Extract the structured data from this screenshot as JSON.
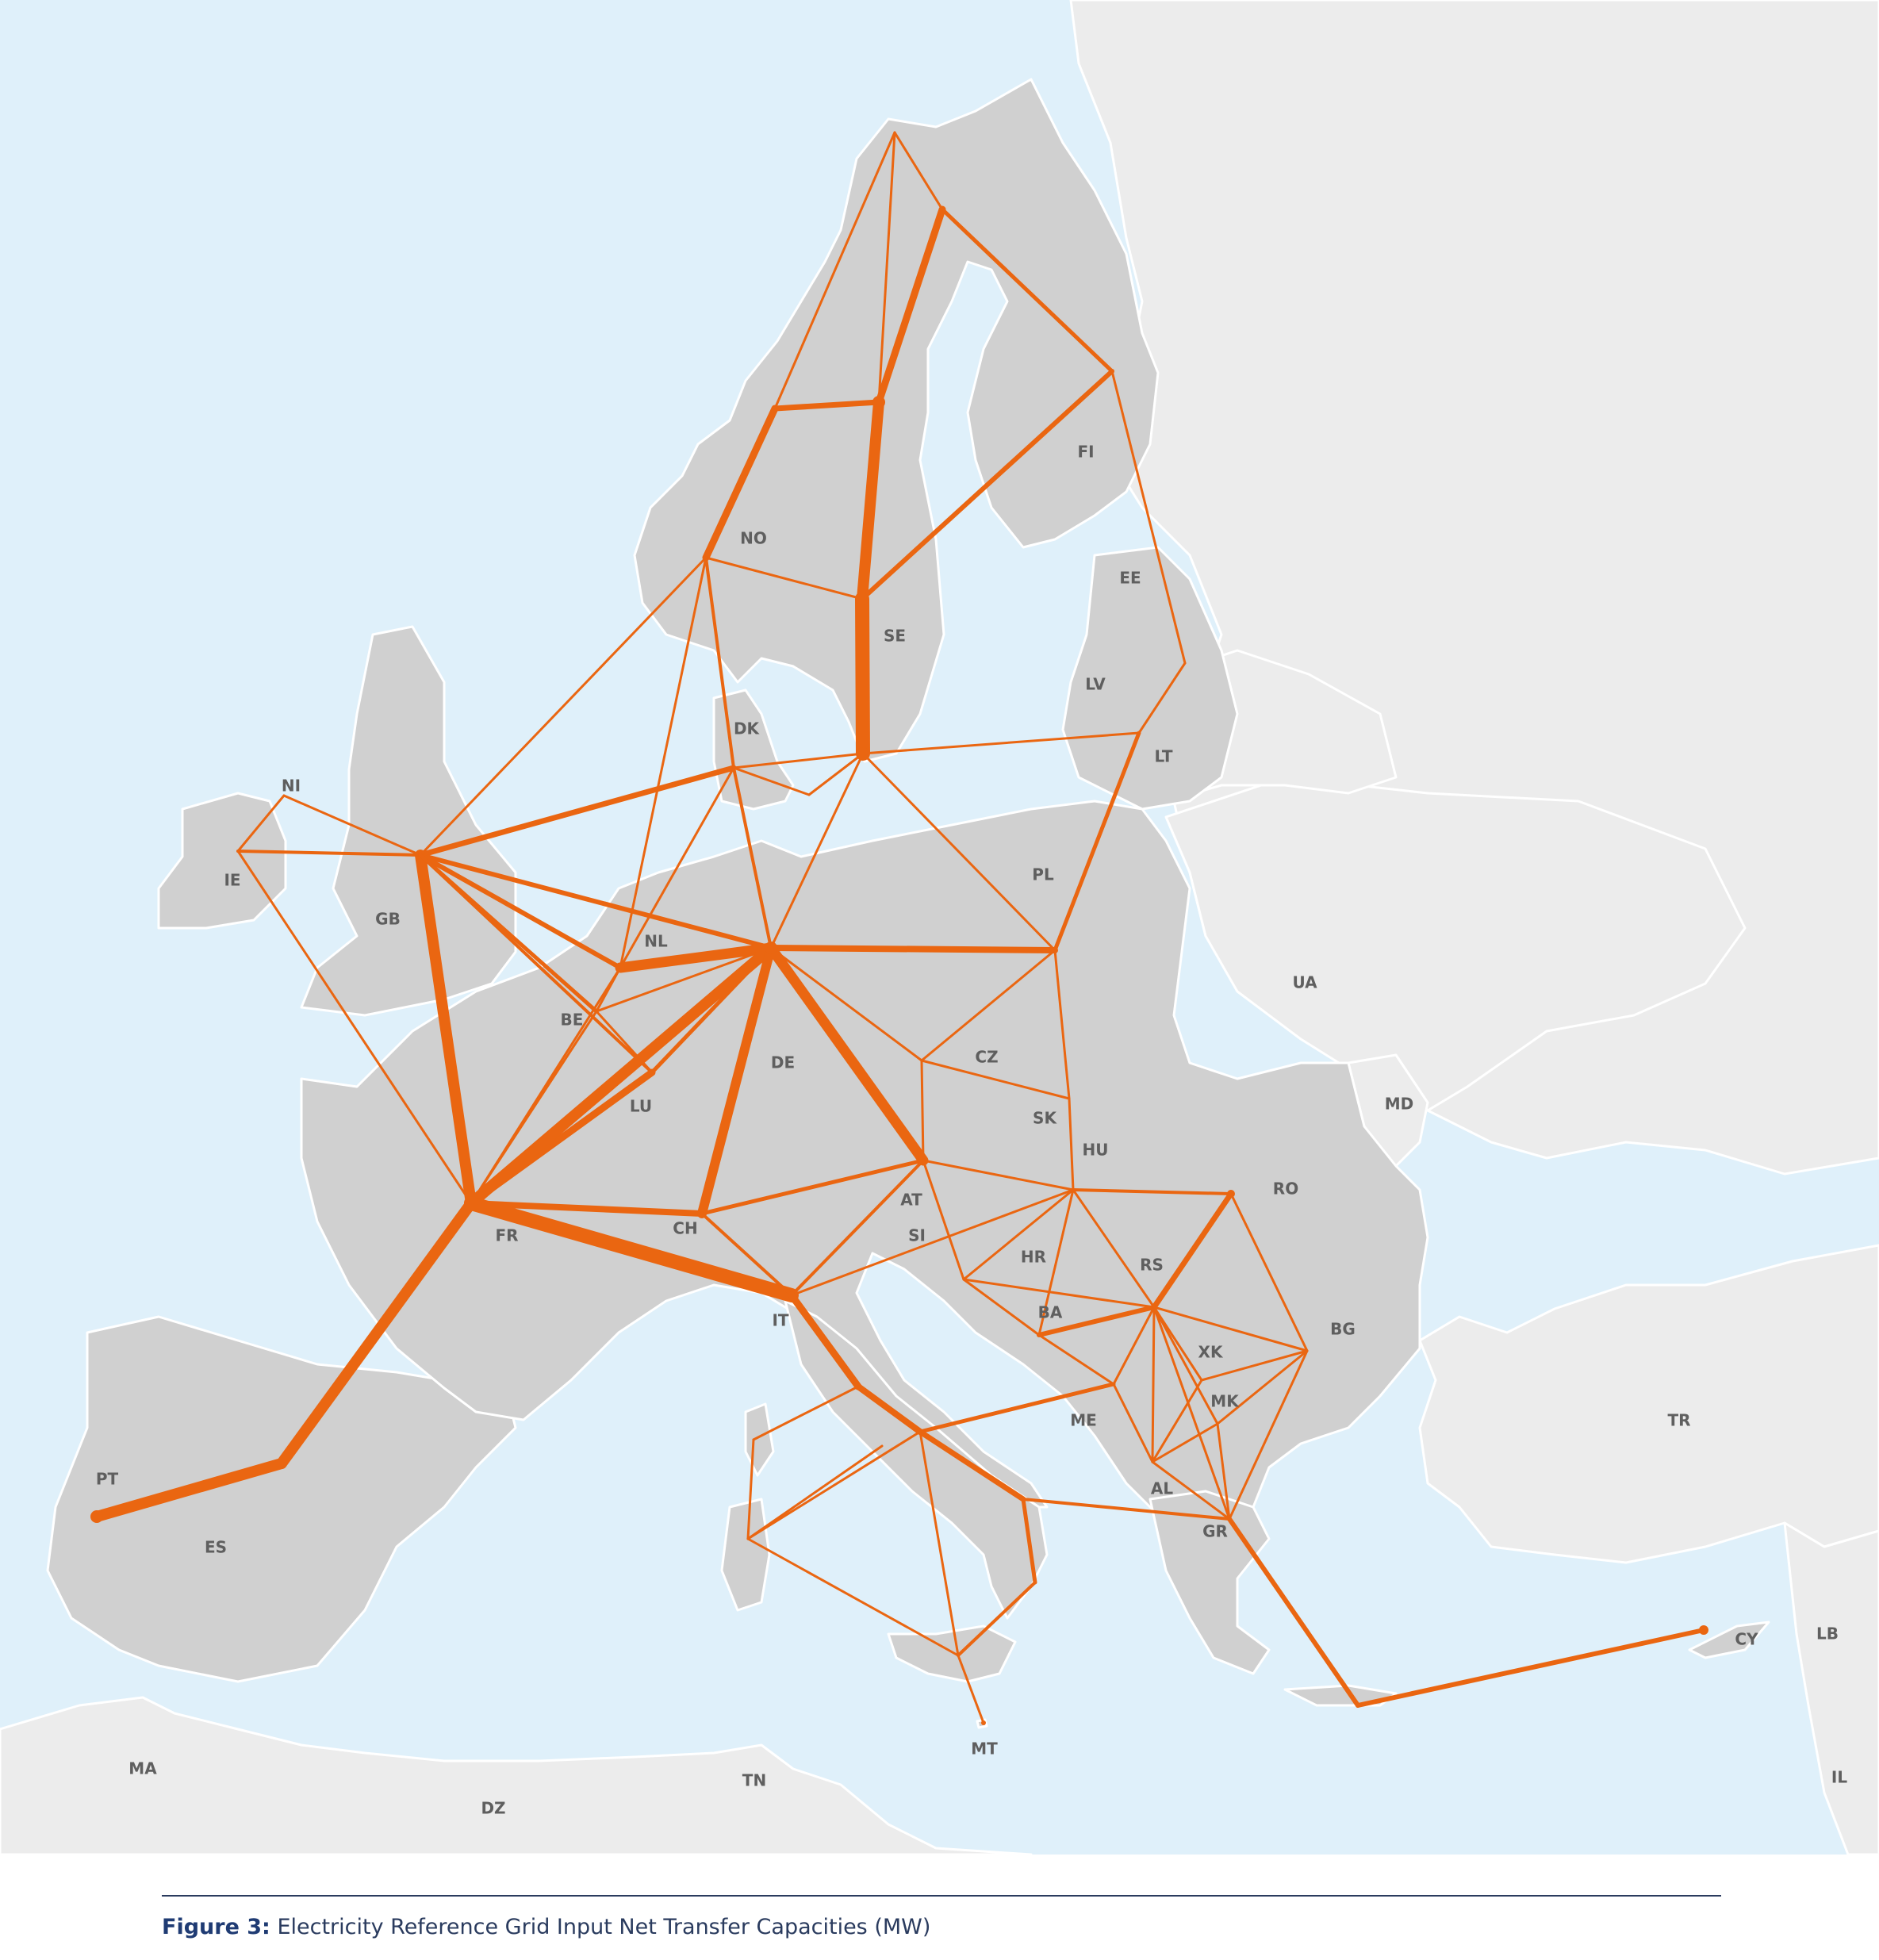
{
  "map": {
    "colors": {
      "sea": "#dff0fa",
      "eu_land": "#d0d0d0",
      "other_land": "#ececec",
      "border": "#ffffff",
      "link": "#ea6611",
      "label": "#5f5f5f"
    },
    "countries": [
      {
        "code": "NO",
        "label": "NO"
      },
      {
        "code": "SE",
        "label": "SE"
      },
      {
        "code": "FI",
        "label": "FI"
      },
      {
        "code": "EE",
        "label": "EE"
      },
      {
        "code": "LV",
        "label": "LV"
      },
      {
        "code": "LT",
        "label": "LT"
      },
      {
        "code": "DK",
        "label": "DK"
      },
      {
        "code": "NI",
        "label": "NI"
      },
      {
        "code": "IE",
        "label": "IE"
      },
      {
        "code": "GB",
        "label": "GB"
      },
      {
        "code": "NL",
        "label": "NL"
      },
      {
        "code": "BE",
        "label": "BE"
      },
      {
        "code": "LU",
        "label": "LU"
      },
      {
        "code": "DE",
        "label": "DE"
      },
      {
        "code": "PL",
        "label": "PL"
      },
      {
        "code": "CZ",
        "label": "CZ"
      },
      {
        "code": "SK",
        "label": "SK"
      },
      {
        "code": "HU",
        "label": "HU"
      },
      {
        "code": "AT",
        "label": "AT"
      },
      {
        "code": "SI",
        "label": "SI"
      },
      {
        "code": "CH",
        "label": "CH"
      },
      {
        "code": "FR",
        "label": "FR"
      },
      {
        "code": "IT",
        "label": "IT"
      },
      {
        "code": "HR",
        "label": "HR"
      },
      {
        "code": "BA",
        "label": "BA"
      },
      {
        "code": "RS",
        "label": "RS"
      },
      {
        "code": "RO",
        "label": "RO"
      },
      {
        "code": "BG",
        "label": "BG"
      },
      {
        "code": "XK",
        "label": "XK"
      },
      {
        "code": "MK",
        "label": "MK"
      },
      {
        "code": "ME",
        "label": "ME"
      },
      {
        "code": "AL",
        "label": "AL"
      },
      {
        "code": "GR",
        "label": "GR"
      },
      {
        "code": "PT",
        "label": "PT"
      },
      {
        "code": "ES",
        "label": "ES"
      },
      {
        "code": "MT",
        "label": "MT"
      },
      {
        "code": "CY",
        "label": "CY"
      },
      {
        "code": "UA",
        "label": "UA"
      },
      {
        "code": "MD",
        "label": "MD"
      },
      {
        "code": "TR",
        "label": "TR"
      },
      {
        "code": "MA",
        "label": "MA"
      },
      {
        "code": "DZ",
        "label": "DZ"
      },
      {
        "code": "TN",
        "label": "TN"
      },
      {
        "code": "LB",
        "label": "LB"
      },
      {
        "code": "IL",
        "label": "IL"
      }
    ],
    "interconnections": [
      {
        "from": "SE",
        "to": "SE-N",
        "weight": 5
      },
      {
        "from": "SE-N",
        "to": "SE-NN",
        "weight": 4
      },
      {
        "from": "SE-NN",
        "to": "NO-N",
        "weight": 2
      },
      {
        "from": "NO",
        "to": "NO-M",
        "weight": 3
      },
      {
        "from": "NO-M",
        "to": "SE-NN",
        "weight": 3
      },
      {
        "from": "SE-NN",
        "to": "SE-FI",
        "weight": 2
      },
      {
        "from": "SE-N",
        "to": "FI",
        "weight": 2
      },
      {
        "from": "FI",
        "to": "SE-FI",
        "weight": 2
      },
      {
        "from": "GB",
        "to": "FR",
        "weight": 4
      },
      {
        "from": "FR",
        "to": "DE",
        "weight": 4
      },
      {
        "from": "FR",
        "to": "IT",
        "weight": 4
      },
      {
        "from": "FR",
        "to": "ES",
        "weight": 3
      },
      {
        "from": "ES",
        "to": "PT",
        "weight": 3
      },
      {
        "from": "DE",
        "to": "NL",
        "weight": 3
      },
      {
        "from": "DE",
        "to": "AT",
        "weight": 3
      },
      {
        "from": "DE",
        "to": "PL",
        "weight": 2
      },
      {
        "from": "DE",
        "to": "CH",
        "weight": 2
      },
      {
        "from": "GB",
        "to": "DK",
        "weight": 2
      },
      {
        "from": "GR",
        "to": "CY",
        "weight": 2
      },
      {
        "from": "RS",
        "to": "RO",
        "weight": 2
      },
      {
        "from": "IT",
        "to": "GR",
        "weight": 2
      },
      {
        "from": "CH",
        "to": "IT",
        "weight": 1
      },
      {
        "from": "LT",
        "to": "PL",
        "weight": 1
      },
      {
        "from": "SE",
        "to": "LT",
        "weight": 1
      }
    ]
  },
  "caption": {
    "prefix": "Figure 3:",
    "text": " Electricity Reference Grid Input Net Transfer Capacities (MW)"
  }
}
